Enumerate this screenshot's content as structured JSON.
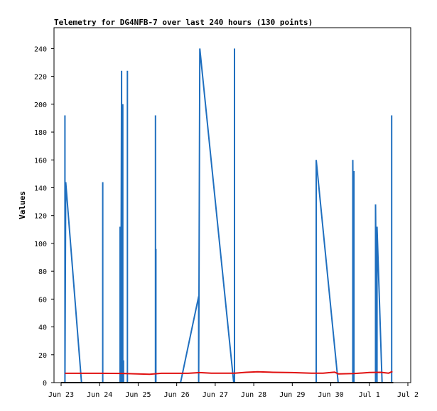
{
  "chart_data": {
    "type": "line",
    "title": "Telemetry for DG4NFB-7 over last 240 hours (130 points)",
    "ylabel": "Values",
    "xlabel": "",
    "ylim": [
      0,
      255
    ],
    "yticks": [
      0,
      20,
      40,
      60,
      80,
      100,
      120,
      140,
      160,
      180,
      200,
      220,
      240
    ],
    "xlim": [
      0,
      9.0
    ],
    "xticks": [
      {
        "x": 0,
        "label": "Jun 23"
      },
      {
        "x": 1,
        "label": "Jun 24"
      },
      {
        "x": 2,
        "label": "Jun 25"
      },
      {
        "x": 3,
        "label": "Jun 26"
      },
      {
        "x": 4,
        "label": "Jun 27"
      },
      {
        "x": 5,
        "label": "Jun 28"
      },
      {
        "x": 6,
        "label": "Jun 29"
      },
      {
        "x": 7,
        "label": "Jun 30"
      },
      {
        "x": 8,
        "label": "Jul 1"
      },
      {
        "x": 9,
        "label": "Jul 2"
      }
    ],
    "grid": false,
    "series": [
      {
        "color": "#1f6fbf",
        "points": [
          [
            0.0,
            0
          ],
          [
            0.0,
            0
          ],
          [
            0.1,
            0
          ],
          [
            0.1,
            192
          ],
          [
            0.1,
            0
          ],
          [
            0.12,
            144
          ],
          [
            0.53,
            0
          ],
          [
            1.08,
            0
          ],
          [
            1.08,
            144
          ],
          [
            1.08,
            0
          ],
          [
            1.53,
            0
          ],
          [
            1.53,
            112
          ],
          [
            1.55,
            0
          ],
          [
            1.57,
            224
          ],
          [
            1.57,
            0
          ],
          [
            1.6,
            200
          ],
          [
            1.6,
            0
          ],
          [
            1.62,
            16
          ],
          [
            1.62,
            0
          ],
          [
            1.72,
            0
          ],
          [
            1.72,
            224
          ],
          [
            1.72,
            0
          ],
          [
            2.45,
            0
          ],
          [
            2.45,
            192
          ],
          [
            2.45,
            0
          ],
          [
            2.46,
            96
          ],
          [
            2.46,
            0
          ],
          [
            3.1,
            0
          ],
          [
            3.57,
            62
          ],
          [
            3.57,
            0
          ],
          [
            3.6,
            240
          ],
          [
            4.48,
            0
          ],
          [
            4.5,
            0
          ],
          [
            4.5,
            240
          ],
          [
            4.5,
            0
          ],
          [
            6.62,
            0
          ],
          [
            6.62,
            160
          ],
          [
            7.19,
            0
          ],
          [
            7.57,
            0
          ],
          [
            7.57,
            160
          ],
          [
            7.6,
            0
          ],
          [
            7.6,
            152
          ],
          [
            7.6,
            0
          ],
          [
            8.16,
            0
          ],
          [
            8.16,
            128
          ],
          [
            8.2,
            0
          ],
          [
            8.2,
            112
          ],
          [
            8.33,
            0
          ],
          [
            8.58,
            0
          ],
          [
            8.58,
            192
          ],
          [
            8.58,
            0
          ]
        ]
      },
      {
        "color": "#e01010",
        "points": [
          [
            0.1,
            6.7
          ],
          [
            1.0,
            6.7
          ],
          [
            1.6,
            6.6
          ],
          [
            1.9,
            6.3
          ],
          [
            2.3,
            6.0
          ],
          [
            2.6,
            6.7
          ],
          [
            3.3,
            6.7
          ],
          [
            3.6,
            7.2
          ],
          [
            3.9,
            6.8
          ],
          [
            4.5,
            6.8
          ],
          [
            4.8,
            7.4
          ],
          [
            5.1,
            7.8
          ],
          [
            5.5,
            7.4
          ],
          [
            6.0,
            7.2
          ],
          [
            6.5,
            6.8
          ],
          [
            6.8,
            6.8
          ],
          [
            7.1,
            7.5
          ],
          [
            7.2,
            6.2
          ],
          [
            7.6,
            6.5
          ],
          [
            8.0,
            7.3
          ],
          [
            8.3,
            7.4
          ],
          [
            8.5,
            6.8
          ],
          [
            8.6,
            8.0
          ]
        ]
      }
    ]
  }
}
